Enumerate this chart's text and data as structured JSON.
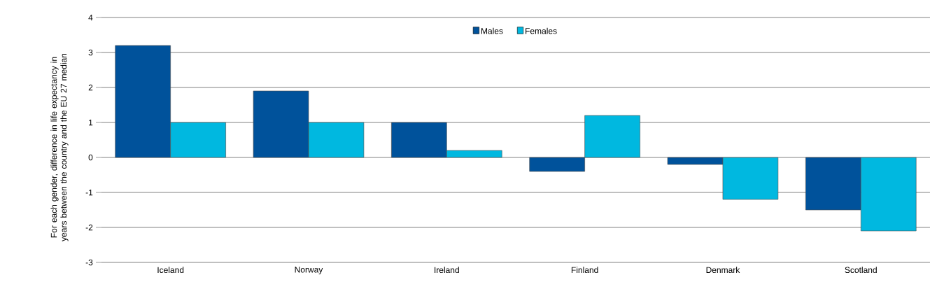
{
  "chart_data": {
    "type": "bar",
    "ylabel": "For each gender, difference in life expectancy in years between the country and the EU 27 median",
    "categories": [
      "Iceland",
      "Norway",
      "Ireland",
      "Finland",
      "Denmark",
      "Scotland"
    ],
    "series": [
      {
        "name": "Males",
        "color": "#00529b",
        "values": [
          3.2,
          1.9,
          1.0,
          -0.4,
          -0.2,
          -1.5
        ]
      },
      {
        "name": "Females",
        "color": "#00b8e0",
        "values": [
          1.0,
          1.0,
          0.2,
          1.2,
          -1.2,
          -2.1
        ]
      }
    ],
    "ylim": [
      -3,
      4
    ],
    "yticks": [
      -3,
      -2,
      -1,
      0,
      1,
      2,
      3,
      4
    ],
    "grid": "y",
    "legend": "top"
  }
}
